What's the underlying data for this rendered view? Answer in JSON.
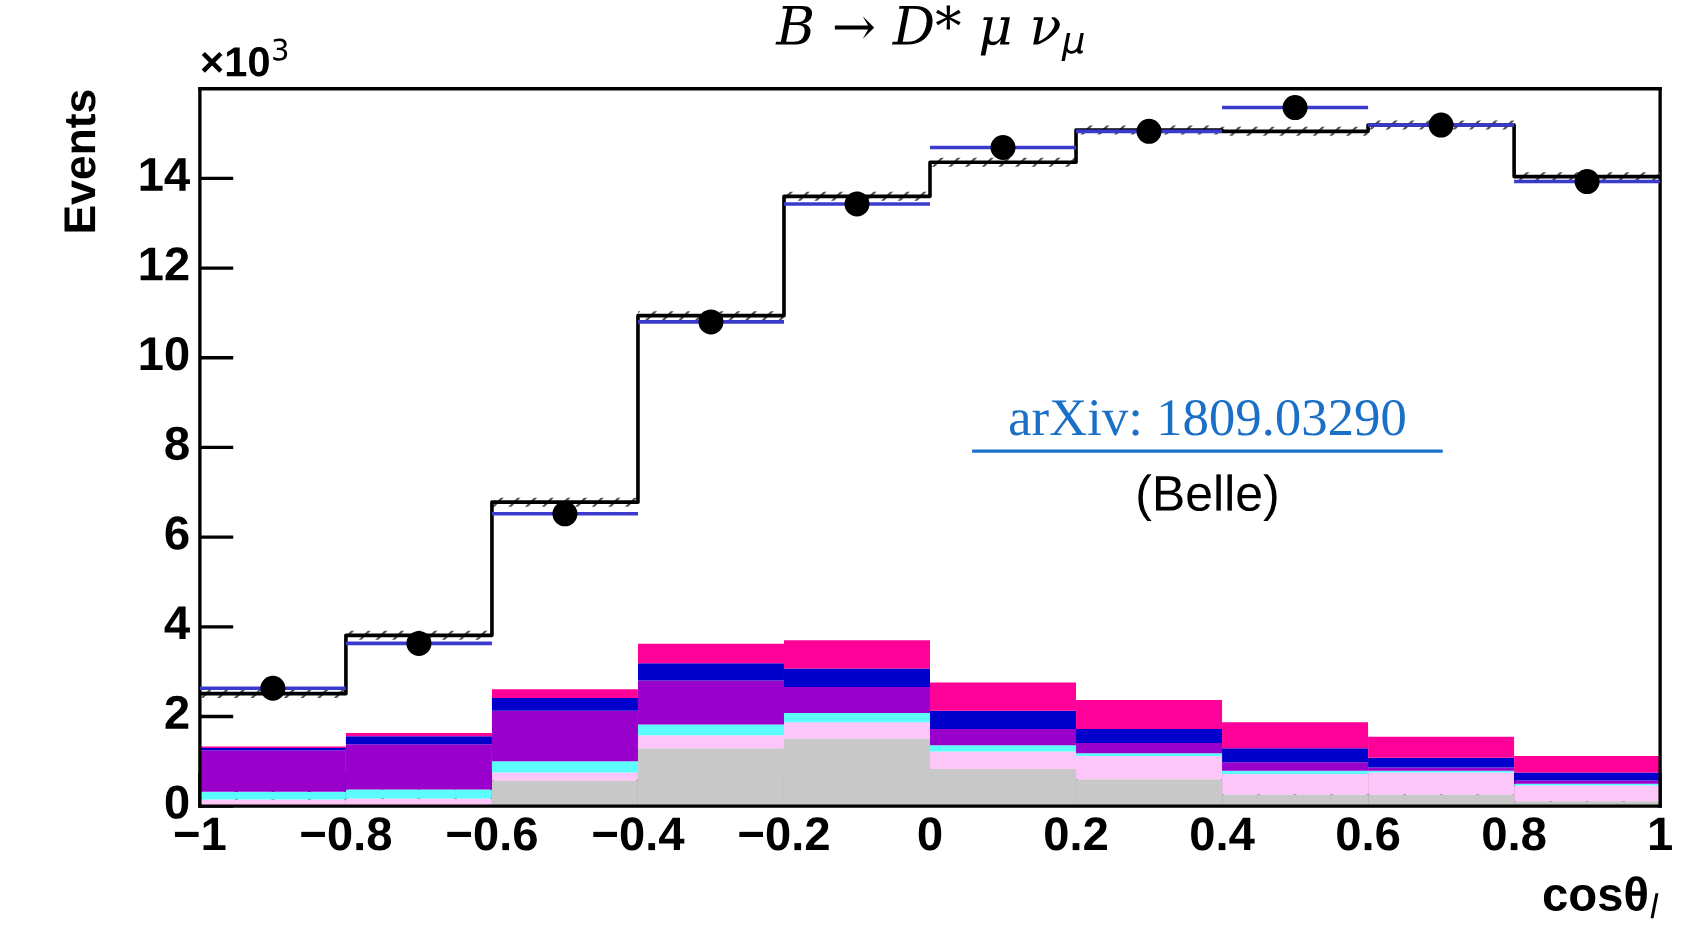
{
  "chart_data": {
    "type": "bar",
    "title": "B → D* μ ν$_{μ}$",
    "xlabel": "cosθ$_{l}$",
    "ylabel": "Events",
    "annotations": [
      "×10$^{3}$",
      "arXiv: 1809.03290",
      "(Belle)"
    ],
    "x": [
      -0.9,
      -0.7,
      -0.5,
      -0.3,
      -0.1,
      0.1,
      0.3,
      0.5,
      0.7,
      0.9
    ],
    "stacked": true,
    "series": [
      {
        "color": "#c8c8c8",
        "values": [
          null,
          null,
          0.57,
          1.29,
          1.51,
          0.83,
          0.6,
          0.26,
          0.26,
          0.11
        ]
      },
      {
        "color": "#fcc6f8",
        "values": [
          0.15,
          0.17,
          0.18,
          0.29,
          0.36,
          0.39,
          0.52,
          0.46,
          0.49,
          0.35
        ]
      },
      {
        "color": "#5cfcfc",
        "values": [
          0.17,
          0.2,
          0.25,
          0.24,
          0.21,
          0.14,
          0.06,
          0.07,
          0.04,
          0.04
        ]
      },
      {
        "color": "#9900cc",
        "values": [
          0.93,
          1.01,
          1.13,
          0.98,
          0.58,
          0.36,
          0.23,
          0.19,
          0.07,
          0.07
        ]
      },
      {
        "color": "#0000cc",
        "values": [
          0.05,
          0.18,
          0.28,
          0.39,
          0.41,
          0.41,
          0.31,
          0.31,
          0.22,
          0.18
        ]
      },
      {
        "color": "#ff0099",
        "values": [
          0.03,
          0.07,
          0.2,
          0.43,
          0.63,
          0.63,
          0.65,
          0.58,
          0.47,
          0.37
        ]
      },
      {
        "type": "step",
        "color": "#000000",
        "x": [
          -1,
          -0.8,
          -0.6,
          -0.4,
          -0.2,
          0,
          0.2,
          0.4,
          0.6,
          0.8,
          1
        ],
        "values": [
          2.51,
          3.81,
          6.78,
          10.94,
          13.6,
          14.36,
          15.08,
          15.05,
          15.19,
          14.04,
          14.04
        ],
        "lower": [
          2.41,
          3.71,
          6.68,
          10.84,
          13.5,
          14.26,
          14.98,
          14.95,
          15.09,
          13.94,
          13.94
        ],
        "upper": [
          2.61,
          3.91,
          6.88,
          11.04,
          13.7,
          14.46,
          15.18,
          15.15,
          15.29,
          14.14,
          14.14
        ]
      },
      {
        "type": "scatter",
        "color": "#000000",
        "marker": "circle",
        "values": [
          2.63,
          3.63,
          6.52,
          10.8,
          13.43,
          14.69,
          15.05,
          15.58,
          15.19,
          13.93
        ],
        "xerrors": [
          0.1,
          0.1,
          0.1,
          0.1,
          0.1,
          0.1,
          0.1,
          0.1,
          0.1,
          0.1
        ]
      }
    ],
    "xlim": [
      -1,
      1
    ],
    "xticks": [
      {
        "value": -1,
        "label": "−1"
      },
      {
        "value": -0.8,
        "label": "−0.8"
      },
      {
        "value": -0.6,
        "label": "−0.6"
      },
      {
        "value": -0.4,
        "label": "−0.4"
      },
      {
        "value": -0.2,
        "label": "−0.2"
      },
      0,
      0.2,
      0.4,
      0.6,
      0.8,
      1
    ],
    "ylim": [
      0,
      16
    ],
    "yticks": [
      0,
      2,
      4,
      6,
      8,
      10,
      12,
      14
    ],
    "grid": false,
    "legend": false
  }
}
